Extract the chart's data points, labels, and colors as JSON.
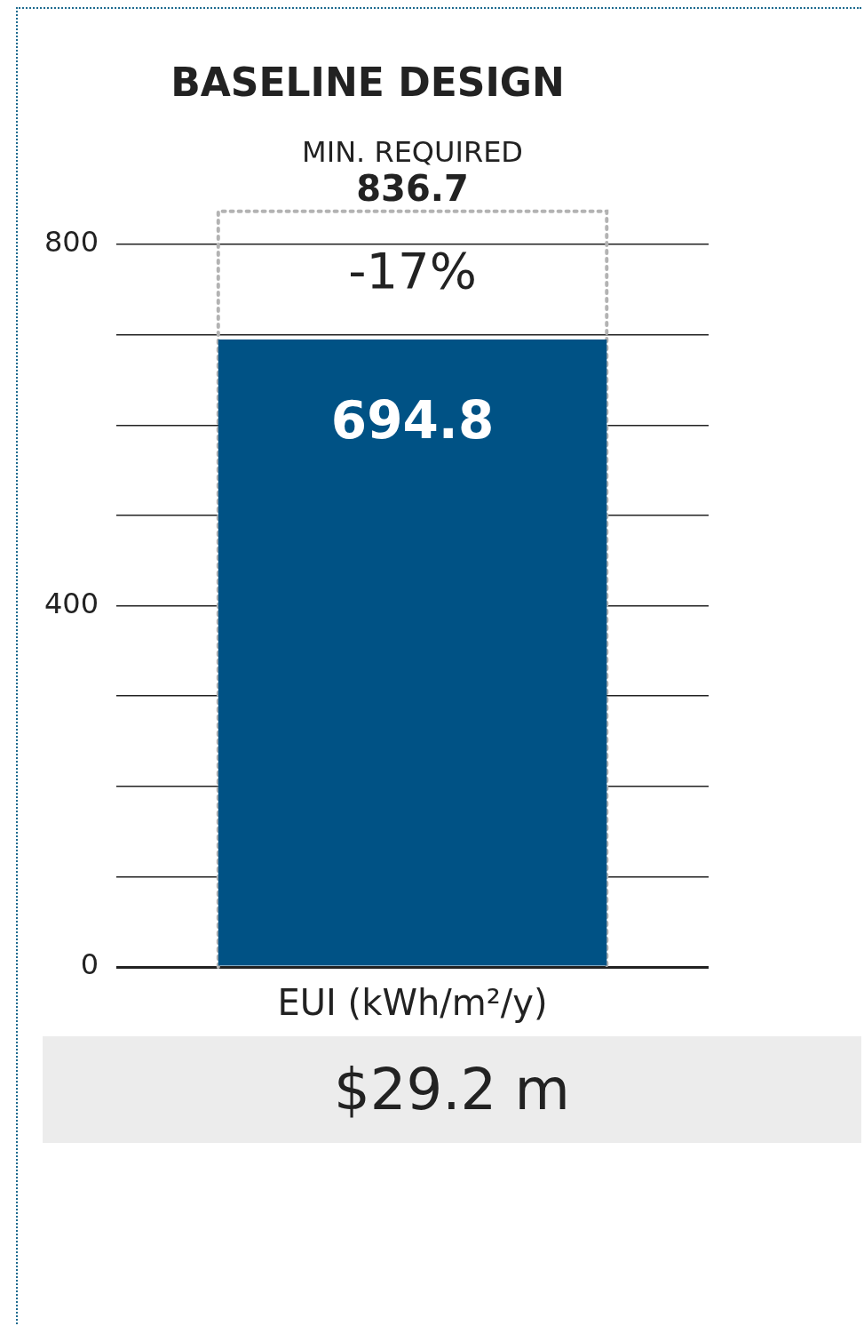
{
  "chart_data": {
    "type": "bar",
    "title": "BASELINE DESIGN",
    "xlabel": "EUI (kWh/m²/y)",
    "categories": [
      null
    ],
    "series": [
      {
        "color": "#005285",
        "values": [
          694.8
        ]
      }
    ],
    "data_labels": true,
    "ylim": [
      0,
      836.7
    ],
    "yticks": [
      0,
      {
        "value": 100,
        "label": null
      },
      {
        "value": 200,
        "label": null
      },
      {
        "value": 300,
        "label": null
      },
      400,
      {
        "value": 500,
        "label": null
      },
      {
        "value": 600,
        "label": null
      },
      {
        "value": 700,
        "label": null
      },
      800
    ],
    "grid": "y",
    "ref_lines": [
      {
        "axis": "y",
        "value": 836.7,
        "label": "MIN. REQUIRED",
        "color": "#b3b3b3",
        "line_style": "dotted"
      }
    ],
    "annotations": [
      "-17%",
      "$29.2 m",
      {
        "text": "836.7",
        "y": 836.7
      }
    ]
  }
}
